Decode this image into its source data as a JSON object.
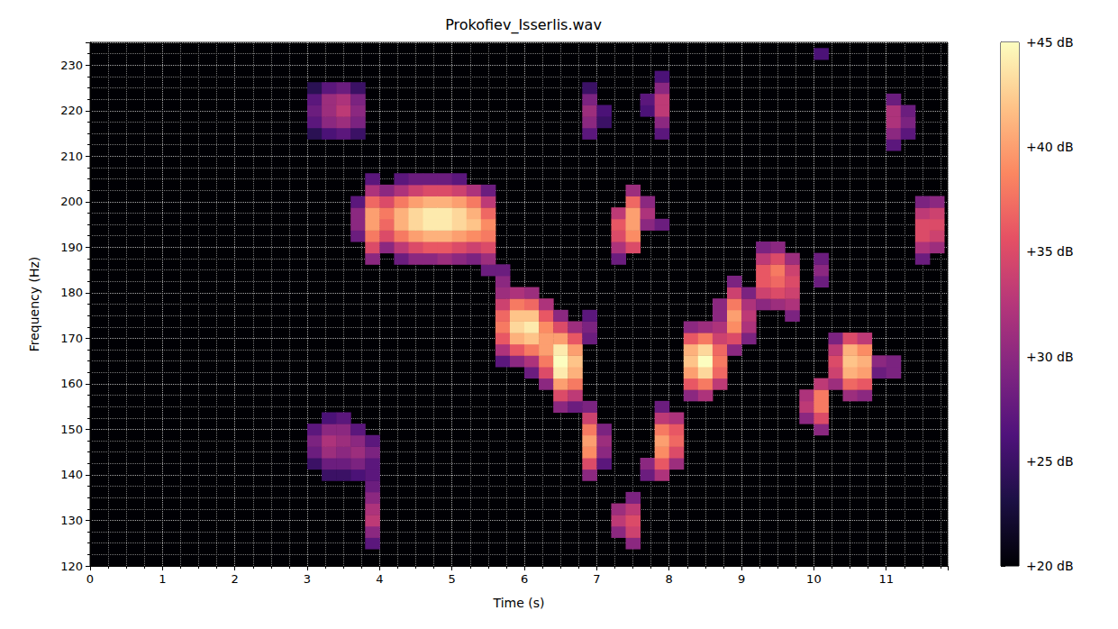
{
  "chart_data": {
    "type": "heatmap",
    "title": "Prokofiev_Isserlis.wav",
    "x_label": "Time (s)",
    "y_label": "Frequency (Hz)",
    "xlim": [
      0,
      11.85
    ],
    "xticks": [
      0,
      1,
      2,
      3,
      4,
      5,
      6,
      7,
      8,
      9,
      10,
      11
    ],
    "ylim": [
      120,
      235
    ],
    "yticks": [
      120,
      130,
      140,
      150,
      160,
      170,
      180,
      190,
      200,
      210,
      220,
      230
    ],
    "grid": true,
    "colorbar_range": [
      20,
      45
    ],
    "colorbar_ticks": [
      {
        "value": 20,
        "label": "+20 dB"
      },
      {
        "value": 25,
        "label": "+25 dB"
      },
      {
        "value": 30,
        "label": "+30 dB"
      },
      {
        "value": 35,
        "label": "+35 dB"
      },
      {
        "value": 40,
        "label": "+40 dB"
      },
      {
        "value": 45,
        "label": "+45 dB"
      }
    ],
    "cells": [
      [
        3.1,
        215,
        24
      ],
      [
        3.1,
        217.5,
        27
      ],
      [
        3.1,
        220,
        28
      ],
      [
        3.1,
        222.5,
        27
      ],
      [
        3.1,
        225,
        24
      ],
      [
        3.3,
        215,
        26
      ],
      [
        3.3,
        217.5,
        30
      ],
      [
        3.3,
        220,
        31
      ],
      [
        3.3,
        222.5,
        31
      ],
      [
        3.3,
        225,
        27
      ],
      [
        3.5,
        215,
        27
      ],
      [
        3.5,
        217.5,
        31
      ],
      [
        3.5,
        220,
        33
      ],
      [
        3.5,
        222.5,
        32
      ],
      [
        3.5,
        225,
        28
      ],
      [
        3.7,
        215,
        25
      ],
      [
        3.7,
        217.5,
        29
      ],
      [
        3.7,
        220,
        30
      ],
      [
        3.7,
        222.5,
        29
      ],
      [
        3.7,
        225,
        25
      ],
      [
        3.1,
        142.5,
        25
      ],
      [
        3.1,
        145,
        28
      ],
      [
        3.1,
        147.5,
        29
      ],
      [
        3.1,
        150,
        27
      ],
      [
        3.3,
        140,
        25
      ],
      [
        3.3,
        142.5,
        28
      ],
      [
        3.3,
        145,
        31
      ],
      [
        3.3,
        147.5,
        32
      ],
      [
        3.3,
        150,
        30
      ],
      [
        3.3,
        152.5,
        26
      ],
      [
        3.5,
        140,
        25
      ],
      [
        3.5,
        142.5,
        28
      ],
      [
        3.5,
        145,
        30
      ],
      [
        3.5,
        147.5,
        31
      ],
      [
        3.5,
        150,
        30
      ],
      [
        3.5,
        152.5,
        27
      ],
      [
        3.7,
        140,
        26
      ],
      [
        3.7,
        142.5,
        29
      ],
      [
        3.7,
        145,
        31
      ],
      [
        3.7,
        147.5,
        30
      ],
      [
        3.7,
        150,
        27
      ],
      [
        3.9,
        142.5,
        27
      ],
      [
        3.9,
        145,
        29
      ],
      [
        3.9,
        147.5,
        27
      ],
      [
        3.9,
        125,
        27
      ],
      [
        3.9,
        127.5,
        30
      ],
      [
        3.9,
        130,
        33
      ],
      [
        3.9,
        132.5,
        32
      ],
      [
        3.9,
        135,
        30
      ],
      [
        3.9,
        137.5,
        28
      ],
      [
        3.9,
        140,
        27
      ],
      [
        3.7,
        192.5,
        28
      ],
      [
        3.7,
        195,
        30
      ],
      [
        3.7,
        197.5,
        30
      ],
      [
        3.7,
        200,
        27
      ],
      [
        3.9,
        187.5,
        30
      ],
      [
        3.9,
        190,
        35
      ],
      [
        3.9,
        192.5,
        38
      ],
      [
        3.9,
        195,
        40
      ],
      [
        3.9,
        197.5,
        40
      ],
      [
        3.9,
        200,
        37
      ],
      [
        3.9,
        202.5,
        32
      ],
      [
        3.9,
        205,
        27
      ],
      [
        4.1,
        190,
        30
      ],
      [
        4.1,
        192.5,
        35
      ],
      [
        4.1,
        195,
        37
      ],
      [
        4.1,
        197.5,
        38
      ],
      [
        4.1,
        200,
        35
      ],
      [
        4.1,
        202.5,
        30
      ],
      [
        4.3,
        187.5,
        28
      ],
      [
        4.3,
        190,
        33
      ],
      [
        4.3,
        192.5,
        38
      ],
      [
        4.3,
        195,
        41
      ],
      [
        4.3,
        197.5,
        41
      ],
      [
        4.3,
        200,
        38
      ],
      [
        4.3,
        202.5,
        32
      ],
      [
        4.3,
        205,
        27
      ],
      [
        4.5,
        187.5,
        30
      ],
      [
        4.5,
        190,
        35
      ],
      [
        4.5,
        192.5,
        40
      ],
      [
        4.5,
        195,
        43
      ],
      [
        4.5,
        197.5,
        43
      ],
      [
        4.5,
        200,
        40
      ],
      [
        4.5,
        202.5,
        34
      ],
      [
        4.5,
        205,
        28
      ],
      [
        4.7,
        187.5,
        30
      ],
      [
        4.7,
        190,
        36
      ],
      [
        4.7,
        192.5,
        41
      ],
      [
        4.7,
        195,
        44
      ],
      [
        4.7,
        197.5,
        44
      ],
      [
        4.7,
        200,
        41
      ],
      [
        4.7,
        202.5,
        35
      ],
      [
        4.7,
        205,
        28
      ],
      [
        4.9,
        187.5,
        31
      ],
      [
        4.9,
        190,
        36
      ],
      [
        4.9,
        192.5,
        41
      ],
      [
        4.9,
        195,
        44
      ],
      [
        4.9,
        197.5,
        44
      ],
      [
        4.9,
        200,
        41
      ],
      [
        4.9,
        202.5,
        35
      ],
      [
        4.9,
        205,
        28
      ],
      [
        5.1,
        187.5,
        30
      ],
      [
        5.1,
        190,
        35
      ],
      [
        5.1,
        192.5,
        40
      ],
      [
        5.1,
        195,
        43
      ],
      [
        5.1,
        197.5,
        43
      ],
      [
        5.1,
        200,
        40
      ],
      [
        5.1,
        202.5,
        34
      ],
      [
        5.1,
        205,
        27
      ],
      [
        5.3,
        187.5,
        29
      ],
      [
        5.3,
        190,
        34
      ],
      [
        5.3,
        192.5,
        39
      ],
      [
        5.3,
        195,
        42
      ],
      [
        5.3,
        197.5,
        41
      ],
      [
        5.3,
        200,
        38
      ],
      [
        5.3,
        202.5,
        32
      ],
      [
        5.5,
        185,
        28
      ],
      [
        5.5,
        187.5,
        31
      ],
      [
        5.5,
        190,
        35
      ],
      [
        5.5,
        192.5,
        38
      ],
      [
        5.5,
        195,
        39
      ],
      [
        5.5,
        197.5,
        37
      ],
      [
        5.5,
        200,
        33
      ],
      [
        5.5,
        202.5,
        28
      ],
      [
        5.7,
        165,
        27
      ],
      [
        5.7,
        167.5,
        32
      ],
      [
        5.7,
        170,
        36
      ],
      [
        5.7,
        172.5,
        38
      ],
      [
        5.7,
        175,
        37
      ],
      [
        5.7,
        177.5,
        34
      ],
      [
        5.7,
        180,
        31
      ],
      [
        5.7,
        182.5,
        30
      ],
      [
        5.7,
        185,
        28
      ],
      [
        5.9,
        165,
        30
      ],
      [
        5.9,
        167.5,
        36
      ],
      [
        5.9,
        170,
        41
      ],
      [
        5.9,
        172.5,
        43
      ],
      [
        5.9,
        175,
        42
      ],
      [
        5.9,
        177.5,
        38
      ],
      [
        5.9,
        180,
        32
      ],
      [
        6.1,
        162.5,
        28
      ],
      [
        6.1,
        165,
        32
      ],
      [
        6.1,
        167.5,
        38
      ],
      [
        6.1,
        170,
        42
      ],
      [
        6.1,
        172.5,
        44
      ],
      [
        6.1,
        175,
        42
      ],
      [
        6.1,
        177.5,
        37
      ],
      [
        6.1,
        180,
        31
      ],
      [
        6.3,
        160,
        30
      ],
      [
        6.3,
        162.5,
        35
      ],
      [
        6.3,
        165,
        38
      ],
      [
        6.3,
        167.5,
        40
      ],
      [
        6.3,
        170,
        40
      ],
      [
        6.3,
        172.5,
        39
      ],
      [
        6.3,
        175,
        36
      ],
      [
        6.3,
        177.5,
        32
      ],
      [
        6.5,
        155,
        30
      ],
      [
        6.5,
        157.5,
        35
      ],
      [
        6.5,
        160,
        40
      ],
      [
        6.5,
        162.5,
        44
      ],
      [
        6.5,
        165,
        45
      ],
      [
        6.5,
        167.5,
        44
      ],
      [
        6.5,
        170,
        40
      ],
      [
        6.5,
        172.5,
        35
      ],
      [
        6.5,
        175,
        30
      ],
      [
        6.7,
        155,
        28
      ],
      [
        6.7,
        157.5,
        33
      ],
      [
        6.7,
        160,
        38
      ],
      [
        6.7,
        162.5,
        41
      ],
      [
        6.7,
        165,
        42
      ],
      [
        6.7,
        167.5,
        40
      ],
      [
        6.7,
        170,
        36
      ],
      [
        6.7,
        172.5,
        31
      ],
      [
        6.9,
        140,
        30
      ],
      [
        6.9,
        142.5,
        35
      ],
      [
        6.9,
        145,
        39
      ],
      [
        6.9,
        147.5,
        40
      ],
      [
        6.9,
        150,
        38
      ],
      [
        6.9,
        152.5,
        34
      ],
      [
        6.9,
        155,
        29
      ],
      [
        7.1,
        142.5,
        27
      ],
      [
        7.1,
        145,
        30
      ],
      [
        7.1,
        147.5,
        31
      ],
      [
        7.1,
        150,
        29
      ],
      [
        6.9,
        215,
        27
      ],
      [
        6.9,
        217.5,
        30
      ],
      [
        6.9,
        220,
        31
      ],
      [
        6.9,
        222.5,
        29
      ],
      [
        6.9,
        225,
        25
      ],
      [
        7.1,
        217.5,
        25
      ],
      [
        7.1,
        220,
        26
      ],
      [
        6.9,
        170,
        28
      ],
      [
        6.9,
        172.5,
        29
      ],
      [
        6.9,
        175,
        27
      ],
      [
        7.3,
        127.5,
        30
      ],
      [
        7.3,
        130,
        33
      ],
      [
        7.3,
        132.5,
        31
      ],
      [
        7.5,
        125,
        30
      ],
      [
        7.5,
        127.5,
        34
      ],
      [
        7.5,
        130,
        35
      ],
      [
        7.5,
        132.5,
        33
      ],
      [
        7.5,
        135,
        29
      ],
      [
        7.3,
        187.5,
        28
      ],
      [
        7.3,
        190,
        32
      ],
      [
        7.3,
        192.5,
        35
      ],
      [
        7.3,
        195,
        36
      ],
      [
        7.3,
        197.5,
        33
      ],
      [
        7.5,
        190,
        35
      ],
      [
        7.5,
        192.5,
        39
      ],
      [
        7.5,
        195,
        40
      ],
      [
        7.5,
        197.5,
        40
      ],
      [
        7.5,
        200,
        37
      ],
      [
        7.5,
        202.5,
        31
      ],
      [
        7.7,
        195,
        30
      ],
      [
        7.7,
        197.5,
        32
      ],
      [
        7.7,
        200,
        30
      ],
      [
        7.9,
        195,
        28
      ],
      [
        7.7,
        220,
        26
      ],
      [
        7.7,
        222.5,
        27
      ],
      [
        7.9,
        215,
        27
      ],
      [
        7.9,
        217.5,
        30
      ],
      [
        7.9,
        220,
        33
      ],
      [
        7.9,
        222.5,
        33
      ],
      [
        7.9,
        225,
        30
      ],
      [
        7.9,
        227.5,
        26
      ],
      [
        7.7,
        140,
        28
      ],
      [
        7.7,
        142.5,
        30
      ],
      [
        7.9,
        140,
        32
      ],
      [
        7.9,
        142.5,
        36
      ],
      [
        7.9,
        145,
        39
      ],
      [
        7.9,
        147.5,
        40
      ],
      [
        7.9,
        150,
        38
      ],
      [
        7.9,
        152.5,
        33
      ],
      [
        7.9,
        155,
        28
      ],
      [
        8.1,
        142.5,
        31
      ],
      [
        8.1,
        145,
        35
      ],
      [
        8.1,
        147.5,
        37
      ],
      [
        8.1,
        150,
        36
      ],
      [
        8.1,
        152.5,
        32
      ],
      [
        8.3,
        157.5,
        30
      ],
      [
        8.3,
        160,
        36
      ],
      [
        8.3,
        162.5,
        40
      ],
      [
        8.3,
        165,
        42
      ],
      [
        8.3,
        167.5,
        41
      ],
      [
        8.3,
        170,
        36
      ],
      [
        8.3,
        172.5,
        30
      ],
      [
        8.5,
        157.5,
        32
      ],
      [
        8.5,
        160,
        38
      ],
      [
        8.5,
        162.5,
        43
      ],
      [
        8.5,
        165,
        45
      ],
      [
        8.5,
        167.5,
        43
      ],
      [
        8.5,
        170,
        38
      ],
      [
        8.5,
        172.5,
        31
      ],
      [
        8.7,
        160,
        33
      ],
      [
        8.7,
        162.5,
        37
      ],
      [
        8.7,
        165,
        38
      ],
      [
        8.7,
        167.5,
        37
      ],
      [
        8.7,
        170,
        34
      ],
      [
        8.7,
        172.5,
        32
      ],
      [
        8.7,
        175,
        30
      ],
      [
        8.7,
        177.5,
        30
      ],
      [
        8.9,
        167.5,
        30
      ],
      [
        8.9,
        170,
        35
      ],
      [
        8.9,
        172.5,
        39
      ],
      [
        8.9,
        175,
        40
      ],
      [
        8.9,
        177.5,
        38
      ],
      [
        8.9,
        180,
        34
      ],
      [
        8.9,
        182.5,
        29
      ],
      [
        9.1,
        170,
        29
      ],
      [
        9.1,
        172.5,
        32
      ],
      [
        9.1,
        175,
        33
      ],
      [
        9.1,
        177.5,
        32
      ],
      [
        9.1,
        180,
        29
      ],
      [
        9.3,
        177.5,
        30
      ],
      [
        9.3,
        180,
        34
      ],
      [
        9.3,
        182.5,
        36
      ],
      [
        9.3,
        185,
        36
      ],
      [
        9.3,
        187.5,
        33
      ],
      [
        9.3,
        190,
        29
      ],
      [
        9.5,
        177.5,
        31
      ],
      [
        9.5,
        180,
        35
      ],
      [
        9.5,
        182.5,
        37
      ],
      [
        9.5,
        185,
        38
      ],
      [
        9.5,
        187.5,
        35
      ],
      [
        9.5,
        190,
        30
      ],
      [
        9.7,
        175,
        29
      ],
      [
        9.7,
        177.5,
        32
      ],
      [
        9.7,
        180,
        34
      ],
      [
        9.7,
        182.5,
        35
      ],
      [
        9.7,
        185,
        34
      ],
      [
        9.7,
        187.5,
        31
      ],
      [
        10.1,
        182.5,
        28
      ],
      [
        10.1,
        185,
        30
      ],
      [
        10.1,
        187.5,
        28
      ],
      [
        9.9,
        152.5,
        30
      ],
      [
        9.9,
        155,
        33
      ],
      [
        9.9,
        157.5,
        32
      ],
      [
        10.1,
        150,
        30
      ],
      [
        10.1,
        152.5,
        35
      ],
      [
        10.1,
        155,
        38
      ],
      [
        10.1,
        157.5,
        38
      ],
      [
        10.1,
        160,
        33
      ],
      [
        10.3,
        160,
        31
      ],
      [
        10.3,
        162.5,
        34
      ],
      [
        10.3,
        165,
        35
      ],
      [
        10.3,
        167.5,
        33
      ],
      [
        10.3,
        170,
        29
      ],
      [
        10.5,
        157.5,
        31
      ],
      [
        10.5,
        160,
        37
      ],
      [
        10.5,
        162.5,
        41
      ],
      [
        10.5,
        165,
        42
      ],
      [
        10.5,
        167.5,
        41
      ],
      [
        10.5,
        170,
        35
      ],
      [
        10.7,
        157.5,
        30
      ],
      [
        10.7,
        160,
        36
      ],
      [
        10.7,
        162.5,
        40
      ],
      [
        10.7,
        165,
        41
      ],
      [
        10.7,
        167.5,
        39
      ],
      [
        10.7,
        170,
        33
      ],
      [
        10.9,
        162.5,
        28
      ],
      [
        10.9,
        165,
        30
      ],
      [
        11.1,
        162.5,
        29
      ],
      [
        11.1,
        165,
        29
      ],
      [
        11.1,
        212.5,
        27
      ],
      [
        11.1,
        215,
        30
      ],
      [
        11.1,
        217.5,
        32
      ],
      [
        11.1,
        220,
        32
      ],
      [
        11.1,
        222.5,
        28
      ],
      [
        11.3,
        215,
        27
      ],
      [
        11.3,
        217.5,
        29
      ],
      [
        11.3,
        220,
        28
      ],
      [
        11.5,
        187.5,
        28
      ],
      [
        11.5,
        190,
        32
      ],
      [
        11.5,
        192.5,
        35
      ],
      [
        11.5,
        195,
        35
      ],
      [
        11.5,
        197.5,
        33
      ],
      [
        11.5,
        200,
        29
      ],
      [
        11.7,
        190,
        31
      ],
      [
        11.7,
        192.5,
        34
      ],
      [
        11.7,
        195,
        35
      ],
      [
        11.7,
        197.5,
        34
      ],
      [
        11.7,
        200,
        30
      ],
      [
        10.1,
        232.5,
        26
      ]
    ]
  }
}
